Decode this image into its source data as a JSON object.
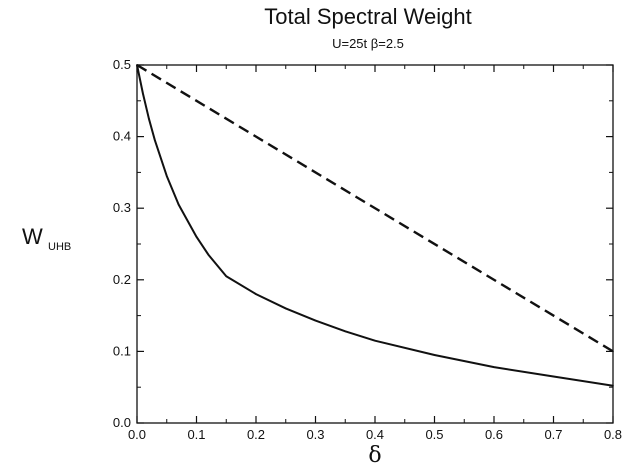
{
  "chart_data": {
    "type": "line",
    "title": "Total Spectral Weight",
    "subtitle": "U=25t β=2.5",
    "xlabel": "δ",
    "ylabel": {
      "main": "W",
      "sub": "UHB"
    },
    "xlim": [
      0.0,
      0.8
    ],
    "ylim": [
      0.0,
      0.5
    ],
    "xticks": [
      "0.0",
      "0.1",
      "0.2",
      "0.3",
      "0.4",
      "0.5",
      "0.6",
      "0.7",
      "0.8"
    ],
    "yticks": [
      "0.0",
      "0.1",
      "0.2",
      "0.3",
      "0.4",
      "0.5"
    ],
    "grid": false,
    "series": [
      {
        "style": "dashed",
        "x": [
          0.0,
          0.8
        ],
        "y": [
          0.5,
          0.1
        ]
      },
      {
        "style": "solid",
        "x": [
          0.0,
          0.01,
          0.02,
          0.03,
          0.05,
          0.07,
          0.1,
          0.12,
          0.15,
          0.2,
          0.25,
          0.3,
          0.35,
          0.4,
          0.5,
          0.6,
          0.7,
          0.8
        ],
        "y": [
          0.5,
          0.46,
          0.425,
          0.395,
          0.345,
          0.305,
          0.26,
          0.235,
          0.205,
          0.18,
          0.16,
          0.143,
          0.128,
          0.115,
          0.095,
          0.078,
          0.065,
          0.052
        ]
      }
    ]
  }
}
